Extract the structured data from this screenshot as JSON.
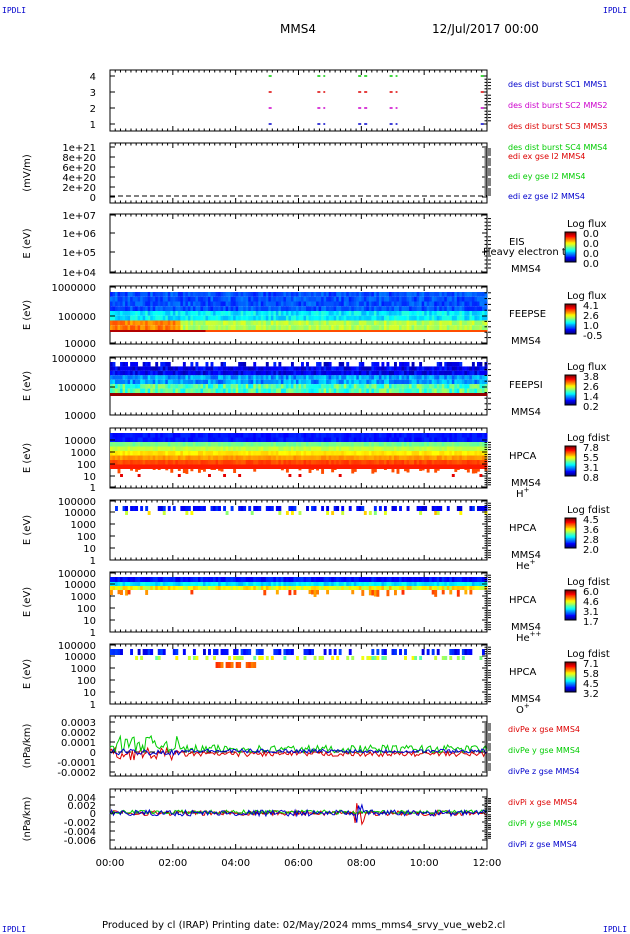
{
  "header": {
    "corner_tl": "IPDLI",
    "corner_tr": "IPDLI",
    "corner_bl": "IPDLI",
    "corner_br": "IPDLI",
    "spacecraft": "MMS4",
    "datetime": "12/Jul/2017 00:00"
  },
  "footer": {
    "text": "Produced by cl (IRAP)   Printing date: 02/May/2024   mms_mms4_srvy_vue_web2.cl"
  },
  "colors": {
    "green": "#00cc00",
    "red": "#dd0000",
    "magenta": "#cc00cc",
    "blue": "#0000cc"
  },
  "x_axis": {
    "range_hours": [
      0,
      12
    ],
    "tick_labels": [
      "00:00",
      "02:00",
      "04:00",
      "06:00",
      "08:00",
      "10:00",
      "12:00"
    ]
  },
  "chart_data": [
    {
      "type": "scatter",
      "id": "burst",
      "yticks": [
        "1",
        "2",
        "3",
        "4"
      ],
      "ylim": [
        0.5,
        4.5
      ],
      "x": "time (hours)",
      "segments": [
        {
          "level": 4,
          "starts": [
            5.05,
            6.6,
            7.9,
            8.9,
            11.8
          ],
          "ends": [
            5.15,
            6.85,
            8.25,
            9.15,
            11.95
          ]
        },
        {
          "level": 3,
          "starts": [
            5.05,
            6.6,
            7.9,
            8.9,
            11.8
          ],
          "ends": [
            5.15,
            6.85,
            8.25,
            9.15,
            11.95
          ]
        },
        {
          "level": 2,
          "starts": [
            5.05,
            6.6,
            7.9,
            8.9,
            11.8
          ],
          "ends": [
            5.15,
            6.85,
            8.25,
            9.15,
            11.95
          ]
        },
        {
          "level": 1,
          "starts": [
            5.05,
            6.6,
            7.9,
            8.9,
            11.8
          ],
          "ends": [
            5.15,
            6.85,
            8.25,
            9.15,
            11.95
          ]
        }
      ],
      "legend": [
        {
          "name": "des dist burst SC1 MMS1",
          "color": "#0000cc"
        },
        {
          "name": "des dist burst SC2 MMS2",
          "color": "#cc00cc"
        },
        {
          "name": "des dist burst SC3 MMS3",
          "color": "#dd0000"
        },
        {
          "name": "des dist burst SC4 MMS4",
          "color": "#00cc00"
        }
      ]
    },
    {
      "type": "line",
      "id": "edi",
      "ylabel": "(mV/m)",
      "yticks": [
        "0",
        "2e+20",
        "4e+20",
        "6e+20",
        "8e+20",
        "1e+21"
      ],
      "ylim": [
        0,
        1e+21
      ],
      "series_value": 0,
      "legend": [
        {
          "name": "edi ex gse l2 MMS4",
          "color": "#dd0000"
        },
        {
          "name": "edi ey gse l2 MMS4",
          "color": "#00cc00"
        },
        {
          "name": "edi ez gse l2 MMS4",
          "color": "#0000cc"
        }
      ]
    },
    {
      "type": "heatmap",
      "id": "eis",
      "ylabel": "E (eV)",
      "yticks": [
        "1e+04",
        "1e+05",
        "1e+06",
        "1e+07"
      ],
      "label": "EIS",
      "sublabel": "MMS4",
      "overlay": "Heavy electron to",
      "cb_title": "Log flux",
      "cb_ticks": [
        "0.0",
        "0.0",
        "0.0",
        "0.0"
      ],
      "empty": true
    },
    {
      "type": "heatmap",
      "id": "feepse",
      "ylabel": "E (eV)",
      "yticks": [
        "10000",
        "100000",
        "1000000"
      ],
      "label": "FEEPSE",
      "sublabel": "MMS4",
      "cb_title": "Log flux",
      "cb_ticks": [
        "4.1",
        "2.6",
        "1.0",
        "-0.5"
      ]
    },
    {
      "type": "heatmap",
      "id": "feepsi",
      "ylabel": "E (eV)",
      "yticks": [
        "10000",
        "100000",
        "1000000"
      ],
      "label": "FEEPSI",
      "sublabel": "MMS4",
      "cb_title": "Log flux",
      "cb_ticks": [
        "3.8",
        "2.6",
        "1.4",
        "0.2"
      ]
    },
    {
      "type": "heatmap",
      "id": "hpca_h",
      "ylabel": "E (eV)",
      "yticks": [
        "1",
        "10",
        "100",
        "1000",
        "10000"
      ],
      "label": "HPCA",
      "sublabel": "MMS4",
      "species": "H",
      "species_sup": "+",
      "cb_title": "Log fdist",
      "cb_ticks": [
        "7.8",
        "5.5",
        "3.1",
        "0.8"
      ]
    },
    {
      "type": "heatmap",
      "id": "hpca_he",
      "ylabel": "E (eV)",
      "yticks": [
        "1",
        "10",
        "100",
        "1000",
        "10000",
        "100000"
      ],
      "label": "HPCA",
      "sublabel": "MMS4",
      "species": "He",
      "species_sup": "+",
      "cb_title": "Log fdist",
      "cb_ticks": [
        "4.5",
        "3.6",
        "2.8",
        "2.0"
      ]
    },
    {
      "type": "heatmap",
      "id": "hpca_hepp",
      "ylabel": "E (eV)",
      "yticks": [
        "1",
        "10",
        "100",
        "1000",
        "10000",
        "100000"
      ],
      "label": "HPCA",
      "sublabel": "MMS4",
      "species": "He",
      "species_sup": "++",
      "cb_title": "Log fdist",
      "cb_ticks": [
        "6.0",
        "4.6",
        "3.1",
        "1.7"
      ]
    },
    {
      "type": "heatmap",
      "id": "hpca_o",
      "ylabel": "E (eV)",
      "yticks": [
        "1",
        "10",
        "100",
        "1000",
        "10000",
        "100000"
      ],
      "label": "HPCA",
      "sublabel": "MMS4",
      "species": "O",
      "species_sup": "+",
      "cb_title": "Log fdist",
      "cb_ticks": [
        "7.1",
        "5.8",
        "4.5",
        "3.2"
      ]
    },
    {
      "type": "line",
      "id": "divpe",
      "ylabel": "(nPa/km)",
      "yticks": [
        "-0.0002",
        "-0.0001",
        "0",
        "0.0001",
        "0.0002",
        "0.0003"
      ],
      "ylim": [
        -0.0002,
        0.0003
      ],
      "legend": [
        {
          "name": "divPe x gse MMS4",
          "color": "#dd0000"
        },
        {
          "name": "divPe y gse MMS4",
          "color": "#00cc00"
        },
        {
          "name": "divPe z gse MMS4",
          "color": "#0000cc"
        }
      ]
    },
    {
      "type": "line",
      "id": "divpi",
      "ylabel": "(nPa/km)",
      "yticks": [
        "-0.006",
        "-0.004",
        "-0.002",
        "0",
        "0.002",
        "0.004"
      ],
      "ylim": [
        -0.007,
        0.005
      ],
      "legend": [
        {
          "name": "divPi x gse MMS4",
          "color": "#dd0000"
        },
        {
          "name": "divPi y gse MMS4",
          "color": "#00cc00"
        },
        {
          "name": "divPi z gse MMS4",
          "color": "#0000cc"
        }
      ]
    }
  ]
}
